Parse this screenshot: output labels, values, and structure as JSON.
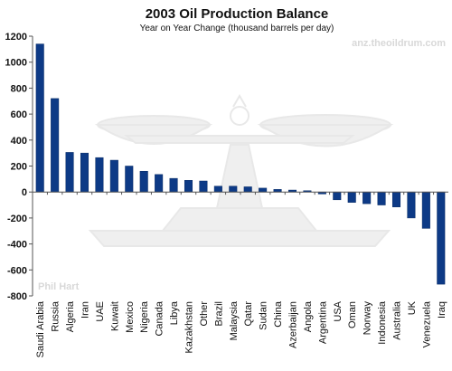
{
  "chart_data": {
    "type": "bar",
    "title": "2003 Oil Production Balance",
    "subtitle": "Year on Year Change (thousand barrels per day)",
    "watermark": "anz.theoildrum.com",
    "credit": "Phil Hart",
    "categories": [
      "Saudi Arabia",
      "Russia",
      "Algeria",
      "Iran",
      "UAE",
      "Kuwait",
      "Mexico",
      "Nigeria",
      "Canada",
      "Libya",
      "Kazakhstan",
      "Other",
      "Brazil",
      "Malaysia",
      "Qatar",
      "Sudan",
      "China",
      "Azerbaijan",
      "Angola",
      "Argentina",
      "USA",
      "Oman",
      "Norway",
      "Indonesia",
      "Australia",
      "UK",
      "Venezuela",
      "Iraq"
    ],
    "values": [
      1140,
      720,
      305,
      300,
      265,
      245,
      200,
      160,
      135,
      105,
      90,
      85,
      45,
      45,
      40,
      30,
      20,
      15,
      10,
      -15,
      -60,
      -80,
      -90,
      -100,
      -115,
      -200,
      -280,
      -710
    ],
    "ylim": [
      -800,
      1200
    ],
    "yticks": [
      -800,
      -600,
      -400,
      -200,
      0,
      200,
      400,
      600,
      800,
      1000,
      1200
    ],
    "grid": false,
    "colors": {
      "bar": "#0d3a86",
      "bar_edge": "#072a63",
      "axis": "#555555"
    }
  }
}
